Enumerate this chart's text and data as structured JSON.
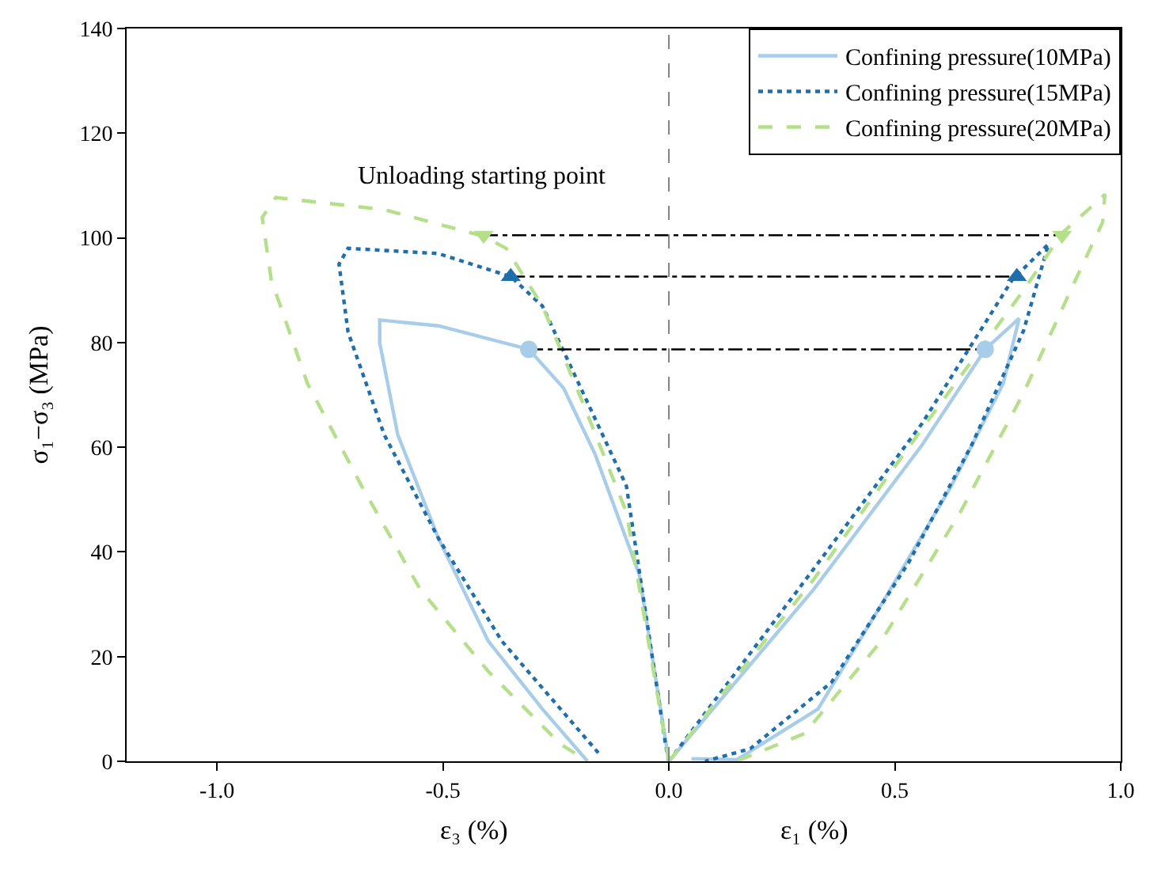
{
  "chart_data": {
    "type": "line",
    "xlabel": [
      "ε₃ (%)",
      "ε₁ (%)"
    ],
    "ylabel": "σ₁−σ₃ (MPa)",
    "xlim": [
      -1.2,
      1.0
    ],
    "xticks": [
      {
        "value": -1.0,
        "label": "-1.0"
      },
      {
        "value": -0.5,
        "label": "-0.5"
      },
      {
        "value": 0.0,
        "label": "0.0"
      },
      {
        "value": 0.5,
        "label": "0.5"
      },
      {
        "value": 1.0,
        "label": "1.0"
      }
    ],
    "ylim": [
      0,
      140
    ],
    "yticks": [
      0,
      20,
      40,
      60,
      80,
      100,
      120,
      140
    ],
    "legend": "top right",
    "annotations": [
      "Unloading starting point"
    ],
    "ref_lines": [
      {
        "axis": "x",
        "value": 0,
        "label": null,
        "color": "#808080",
        "line_style": "dashed"
      }
    ],
    "series": [
      {
        "name": "Confining pressure(10MPa)",
        "color": "#a8cde8",
        "line_style": "solid",
        "marker": "none",
        "x": [
          0,
          -0.066,
          -0.163,
          -0.233,
          -0.31,
          -0.51,
          -0.64,
          -0.64,
          -0.6,
          -0.51,
          -0.4,
          -0.28,
          -0.19,
          -0.18
        ],
        "values": [
          0,
          35.8,
          58.6,
          71.3,
          78.7,
          83.2,
          84.3,
          80,
          62.4,
          42.6,
          23,
          10,
          1,
          0
        ]
      },
      {
        "color": "#a8cde8",
        "line_style": "solid",
        "marker": "none",
        "x": [
          0,
          0.32,
          0.56,
          0.7,
          0.775,
          0.74,
          0.625,
          0.47,
          0.33,
          0.15,
          0.05
        ],
        "values": [
          0,
          32.8,
          60.4,
          78.7,
          84.6,
          72.2,
          52.6,
          29.9,
          10,
          0.3,
          0.5
        ]
      },
      {
        "name": "Confining pressure(15MPa)",
        "color": "#1f6fad",
        "line_style": "dotted",
        "marker": "none",
        "x": [
          0,
          -0.007,
          -0.094,
          -0.19,
          -0.28,
          -0.35,
          -0.51,
          -0.71,
          -0.73,
          -0.71,
          -0.63,
          -0.51,
          -0.37,
          -0.24,
          -0.15
        ],
        "values": [
          0,
          3,
          52.6,
          70.4,
          87,
          92.6,
          97,
          98,
          95,
          82,
          62.4,
          42.6,
          23,
          10,
          1
        ]
      },
      {
        "color": "#1f6fad",
        "line_style": "dotted",
        "marker": "none",
        "x": [
          0,
          0.32,
          0.56,
          0.76,
          0.84,
          0.785,
          0.67,
          0.53,
          0.36,
          0.18,
          0.08
        ],
        "values": [
          0,
          36.7,
          64.5,
          92,
          98.8,
          82.3,
          60.4,
          37.9,
          15.1,
          2.4,
          0
        ]
      },
      {
        "name": "Confining pressure(20MPa)",
        "color": "#b5e08a",
        "line_style": "dashed",
        "marker": "none",
        "x": [
          0,
          -0.094,
          -0.19,
          -0.28,
          -0.36,
          -0.41,
          -0.63,
          -0.87,
          -0.9,
          -0.88,
          -0.8,
          -0.68,
          -0.55,
          -0.4,
          -0.24,
          -0.18
        ],
        "values": [
          0,
          47.6,
          68.4,
          87,
          98,
          100.3,
          105.4,
          107.7,
          103.9,
          92,
          72.2,
          52.6,
          32.8,
          17.2,
          3.3,
          0
        ]
      },
      {
        "color": "#b5e08a",
        "line_style": "dashed",
        "marker": "none",
        "x": [
          0,
          0.32,
          0.56,
          0.785,
          0.87,
          0.965,
          0.96,
          0.9,
          0.785,
          0.645,
          0.47,
          0.3,
          0.15
        ],
        "values": [
          0,
          34.7,
          63.5,
          90,
          100.9,
          108.3,
          103,
          92,
          70.4,
          47.6,
          23,
          5.3,
          0
        ]
      },
      {
        "color": "#000000",
        "line_style": "dashdot",
        "marker": "none",
        "x": [
          -0.31,
          0.7
        ],
        "values": [
          78.7,
          78.7
        ]
      },
      {
        "color": "#000000",
        "line_style": "dashdot",
        "marker": "none",
        "x": [
          -0.35,
          0.77
        ],
        "values": [
          92.6,
          92.6
        ]
      },
      {
        "color": "#000000",
        "line_style": "dashdot",
        "marker": "none",
        "x": [
          -0.41,
          0.87
        ],
        "values": [
          100.5,
          100.5
        ]
      },
      {
        "type": "scatter",
        "color": "#a8cde8",
        "marker": "circle",
        "x": [
          -0.31,
          0.7
        ],
        "values": [
          78.7,
          78.7
        ]
      },
      {
        "type": "scatter",
        "color": "#1f6fad",
        "marker": "triangle",
        "x": [
          -0.35,
          0.77
        ],
        "values": [
          92.6,
          92.6
        ]
      },
      {
        "type": "scatter",
        "color": "#b5e08a",
        "marker": "triangle-down",
        "x": [
          -0.41,
          0.87
        ],
        "values": [
          100.5,
          100.5
        ]
      }
    ]
  }
}
